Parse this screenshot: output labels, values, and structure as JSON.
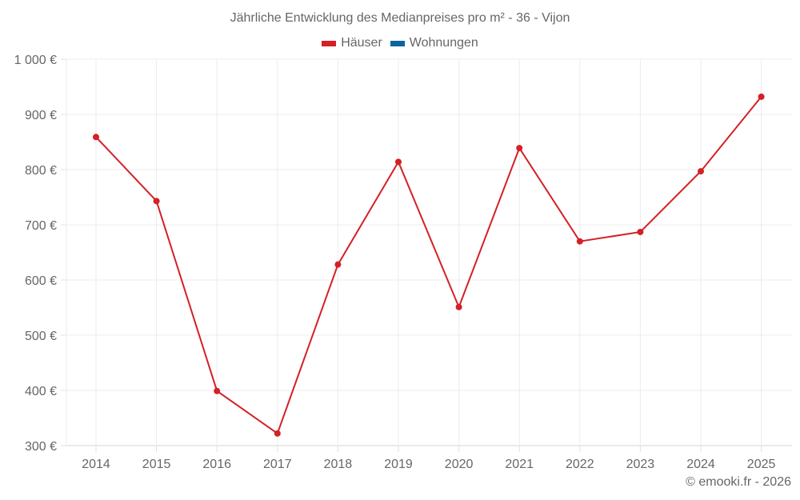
{
  "chart_data": {
    "type": "line",
    "title": "Jährliche Entwicklung des Medianpreises pro m² - 36 - Vijon",
    "xlabel": "",
    "ylabel": "",
    "categories": [
      "2014",
      "2015",
      "2016",
      "2017",
      "2018",
      "2019",
      "2020",
      "2021",
      "2022",
      "2023",
      "2024",
      "2025"
    ],
    "series": [
      {
        "name": "Häuser",
        "color": "#d42026",
        "values": [
          859,
          743,
          399,
          322,
          628,
          814,
          551,
          839,
          670,
          687,
          797,
          932
        ]
      },
      {
        "name": "Wohnungen",
        "color": "#0a64a0",
        "values": []
      }
    ],
    "ylim": [
      300,
      1000
    ],
    "yticks": [
      300,
      400,
      500,
      600,
      700,
      800,
      900,
      1000
    ],
    "ytick_labels": [
      "300 €",
      "400 €",
      "500 €",
      "600 €",
      "700 €",
      "800 €",
      "900 €",
      "1 000 €"
    ],
    "grid": true,
    "legend_position": "top"
  },
  "title": "Jährliche Entwicklung des Medianpreises pro m² - 36 - Vijon",
  "legend": [
    {
      "label": "Häuser",
      "color": "#d42026"
    },
    {
      "label": "Wohnungen",
      "color": "#0a64a0"
    }
  ],
  "credit": "© emooki.fr - 2026"
}
